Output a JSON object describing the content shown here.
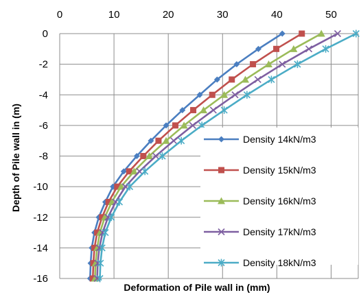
{
  "chart_data": {
    "type": "line",
    "title": "",
    "xlabel": "Deformation of Pile wall in (mm)",
    "ylabel": "Depth of Pile wall in (m)",
    "xlim": [
      0,
      55
    ],
    "ylim": [
      -16,
      0
    ],
    "x_ticks": [
      0,
      10,
      20,
      30,
      40,
      50
    ],
    "y_ticks": [
      0,
      -2,
      -4,
      -6,
      -8,
      -10,
      -12,
      -14,
      -16
    ],
    "x_axis_position": "top",
    "grid": "horizontal and vertical major gridlines",
    "legend_position": "right",
    "depths": [
      0,
      -1,
      -2,
      -3,
      -4,
      -5,
      -6,
      -7,
      -8,
      -9,
      -10,
      -11,
      -12,
      -13,
      -14,
      -15,
      -16
    ],
    "series": [
      {
        "name": "Density 14kN/m3",
        "color": "#4A7EC0",
        "marker": "diamond",
        "x": [
          41.0,
          36.6,
          32.6,
          29.0,
          25.8,
          22.6,
          19.6,
          16.8,
          14.2,
          11.8,
          9.8,
          8.4,
          7.2,
          6.4,
          5.9,
          5.7,
          5.6
        ]
      },
      {
        "name": "Density 15kN/m3",
        "color": "#C0504D",
        "marker": "square",
        "x": [
          44.6,
          39.9,
          35.6,
          31.7,
          28.1,
          24.6,
          21.3,
          18.2,
          15.4,
          12.8,
          10.6,
          9.0,
          7.8,
          6.9,
          6.4,
          6.2,
          6.1
        ]
      },
      {
        "name": "Density 16kN/m3",
        "color": "#9BBB59",
        "marker": "triangle",
        "x": [
          48.2,
          43.1,
          38.5,
          34.2,
          30.3,
          26.5,
          22.9,
          19.6,
          16.5,
          13.7,
          11.3,
          9.6,
          8.3,
          7.4,
          6.9,
          6.6,
          6.5
        ]
      },
      {
        "name": "Density 17kN/m3",
        "color": "#7E5FA1",
        "marker": "x",
        "x": [
          51.2,
          45.9,
          41.0,
          36.5,
          32.3,
          28.3,
          24.5,
          21.0,
          17.7,
          14.7,
          12.1,
          10.3,
          8.9,
          7.9,
          7.3,
          7.0,
          6.9
        ]
      },
      {
        "name": "Density 18kN/m3",
        "color": "#4BACC6",
        "marker": "star",
        "x": [
          54.6,
          49.0,
          43.8,
          39.0,
          34.5,
          30.3,
          26.2,
          22.4,
          18.9,
          15.7,
          12.9,
          11.0,
          9.5,
          8.4,
          7.8,
          7.5,
          7.4
        ]
      }
    ]
  }
}
